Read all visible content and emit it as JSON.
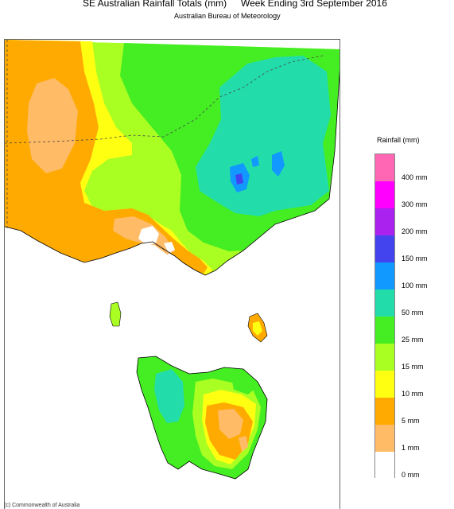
{
  "header": {
    "title": "SE Australian Rainfall Totals (mm)",
    "period": "Week Ending 3rd September 2016",
    "source": "Australian Bureau of Meteorology"
  },
  "legend": {
    "title": "Rainfall (mm)",
    "levels": [
      {
        "label": "400 mm",
        "color": "#ff66b3"
      },
      {
        "label": "300 mm",
        "color": "#ff00ff"
      },
      {
        "label": "200 mm",
        "color": "#aa22ee"
      },
      {
        "label": "150 mm",
        "color": "#4444ee"
      },
      {
        "label": "100 mm",
        "color": "#1199ff"
      },
      {
        "label": "50 mm",
        "color": "#22ddaa"
      },
      {
        "label": "25 mm",
        "color": "#44ee22"
      },
      {
        "label": "15 mm",
        "color": "#aaff22"
      },
      {
        "label": "10 mm",
        "color": "#ffff11"
      },
      {
        "label": "5 mm",
        "color": "#ffaa00"
      },
      {
        "label": "1 mm",
        "color": "#ffbb66"
      },
      {
        "label": "0 mm",
        "color": "#ffffff"
      }
    ]
  },
  "map": {
    "colors": {
      "ocean": "#ffffff",
      "r1": "#ffbb66",
      "r5": "#ffaa00",
      "r10": "#ffff11",
      "r15": "#aaff22",
      "r25": "#44ee22",
      "r50": "#22ddaa",
      "r100": "#1199ff",
      "r150": "#4444ee"
    }
  },
  "footer": {
    "text": "(c) Commonwealth of Australia"
  }
}
